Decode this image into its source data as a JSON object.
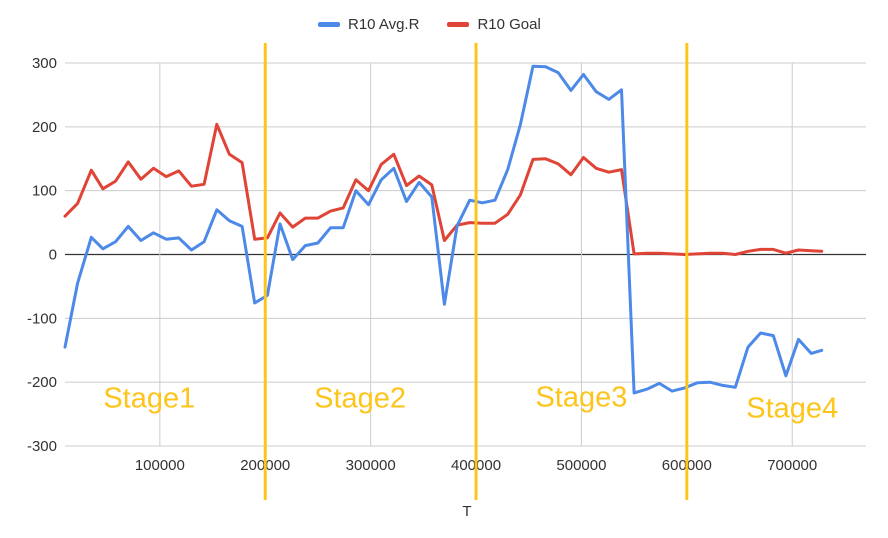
{
  "chart_data": {
    "type": "line",
    "title": "",
    "xlabel": "T",
    "ylabel": "",
    "xlim": [
      10000,
      770000
    ],
    "ylim": [
      -300,
      300
    ],
    "x_ticks": [
      "100000",
      "200000",
      "300000",
      "400000",
      "500000",
      "600000",
      "700000"
    ],
    "x_tick_values": [
      100000,
      200000,
      300000,
      400000,
      500000,
      600000,
      700000
    ],
    "y_ticks": [
      "300",
      "200",
      "100",
      "0",
      "-100",
      "-200",
      "-300"
    ],
    "y_tick_values": [
      300,
      200,
      100,
      0,
      -100,
      -200,
      -300
    ],
    "grid": true,
    "legend_position": "top",
    "series": [
      {
        "name": "R10 Avg.R",
        "color": "#4c89e8",
        "points": [
          [
            10000,
            -145
          ],
          [
            22000,
            -45
          ],
          [
            35000,
            27
          ],
          [
            46000,
            9
          ],
          [
            58000,
            20
          ],
          [
            70000,
            44
          ],
          [
            82000,
            22
          ],
          [
            94000,
            34
          ],
          [
            106000,
            24
          ],
          [
            118000,
            26
          ],
          [
            130000,
            7
          ],
          [
            142000,
            20
          ],
          [
            154000,
            70
          ],
          [
            166000,
            53
          ],
          [
            178000,
            44
          ],
          [
            190000,
            -76
          ],
          [
            202000,
            -64
          ],
          [
            214000,
            48
          ],
          [
            226000,
            -8
          ],
          [
            238000,
            14
          ],
          [
            250000,
            18
          ],
          [
            262000,
            42
          ],
          [
            274000,
            42
          ],
          [
            286000,
            100
          ],
          [
            298000,
            78
          ],
          [
            310000,
            117
          ],
          [
            322000,
            135
          ],
          [
            334000,
            83
          ],
          [
            346000,
            113
          ],
          [
            358000,
            90
          ],
          [
            370000,
            -78
          ],
          [
            382000,
            45
          ],
          [
            394000,
            85
          ],
          [
            406000,
            81
          ],
          [
            418000,
            85
          ],
          [
            430000,
            133
          ],
          [
            442000,
            203
          ],
          [
            454000,
            295
          ],
          [
            466000,
            294
          ],
          [
            478000,
            285
          ],
          [
            490000,
            257
          ],
          [
            502000,
            282
          ],
          [
            514000,
            255
          ],
          [
            526000,
            243
          ],
          [
            538000,
            258
          ],
          [
            550000,
            -217
          ],
          [
            562000,
            -211
          ],
          [
            574000,
            -202
          ],
          [
            586000,
            -214
          ],
          [
            598000,
            -209
          ],
          [
            610000,
            -201
          ],
          [
            622000,
            -200
          ],
          [
            634000,
            -205
          ],
          [
            646000,
            -208
          ],
          [
            658000,
            -145
          ],
          [
            670000,
            -123
          ],
          [
            682000,
            -127
          ],
          [
            694000,
            -190
          ],
          [
            706000,
            -133
          ],
          [
            718000,
            -155
          ],
          [
            728000,
            -150
          ]
        ]
      },
      {
        "name": "R10 Goal",
        "color": "#e04436",
        "points": [
          [
            10000,
            60
          ],
          [
            22000,
            80
          ],
          [
            35000,
            132
          ],
          [
            46000,
            103
          ],
          [
            58000,
            115
          ],
          [
            70000,
            145
          ],
          [
            82000,
            118
          ],
          [
            94000,
            135
          ],
          [
            106000,
            122
          ],
          [
            118000,
            131
          ],
          [
            130000,
            107
          ],
          [
            142000,
            110
          ],
          [
            154000,
            204
          ],
          [
            166000,
            157
          ],
          [
            178000,
            144
          ],
          [
            190000,
            24
          ],
          [
            202000,
            26
          ],
          [
            214000,
            65
          ],
          [
            226000,
            43
          ],
          [
            238000,
            57
          ],
          [
            250000,
            57
          ],
          [
            262000,
            68
          ],
          [
            274000,
            73
          ],
          [
            286000,
            117
          ],
          [
            298000,
            100
          ],
          [
            310000,
            141
          ],
          [
            322000,
            157
          ],
          [
            334000,
            108
          ],
          [
            346000,
            123
          ],
          [
            358000,
            109
          ],
          [
            370000,
            22
          ],
          [
            382000,
            46
          ],
          [
            394000,
            50
          ],
          [
            406000,
            49
          ],
          [
            418000,
            49
          ],
          [
            430000,
            63
          ],
          [
            442000,
            93
          ],
          [
            454000,
            149
          ],
          [
            466000,
            150
          ],
          [
            478000,
            142
          ],
          [
            490000,
            125
          ],
          [
            502000,
            152
          ],
          [
            514000,
            135
          ],
          [
            526000,
            129
          ],
          [
            538000,
            133
          ],
          [
            550000,
            1
          ],
          [
            562000,
            2
          ],
          [
            574000,
            2
          ],
          [
            586000,
            1
          ],
          [
            598000,
            0
          ],
          [
            610000,
            1
          ],
          [
            622000,
            2
          ],
          [
            634000,
            2
          ],
          [
            646000,
            0
          ],
          [
            658000,
            5
          ],
          [
            670000,
            8
          ],
          [
            682000,
            8
          ],
          [
            694000,
            2
          ],
          [
            706000,
            7
          ],
          [
            718000,
            6
          ],
          [
            728000,
            5
          ]
        ]
      }
    ],
    "stage_boundaries": [
      200000,
      400000,
      600000
    ],
    "stage_line_color": "#fdc51b",
    "stage_labels": [
      {
        "text": "Stage1",
        "x": 90000,
        "y": -240
      },
      {
        "text": "Stage2",
        "x": 290000,
        "y": -240
      },
      {
        "text": "Stage3",
        "x": 500000,
        "y": -238
      },
      {
        "text": "Stage4",
        "x": 700000,
        "y": -255
      }
    ]
  }
}
